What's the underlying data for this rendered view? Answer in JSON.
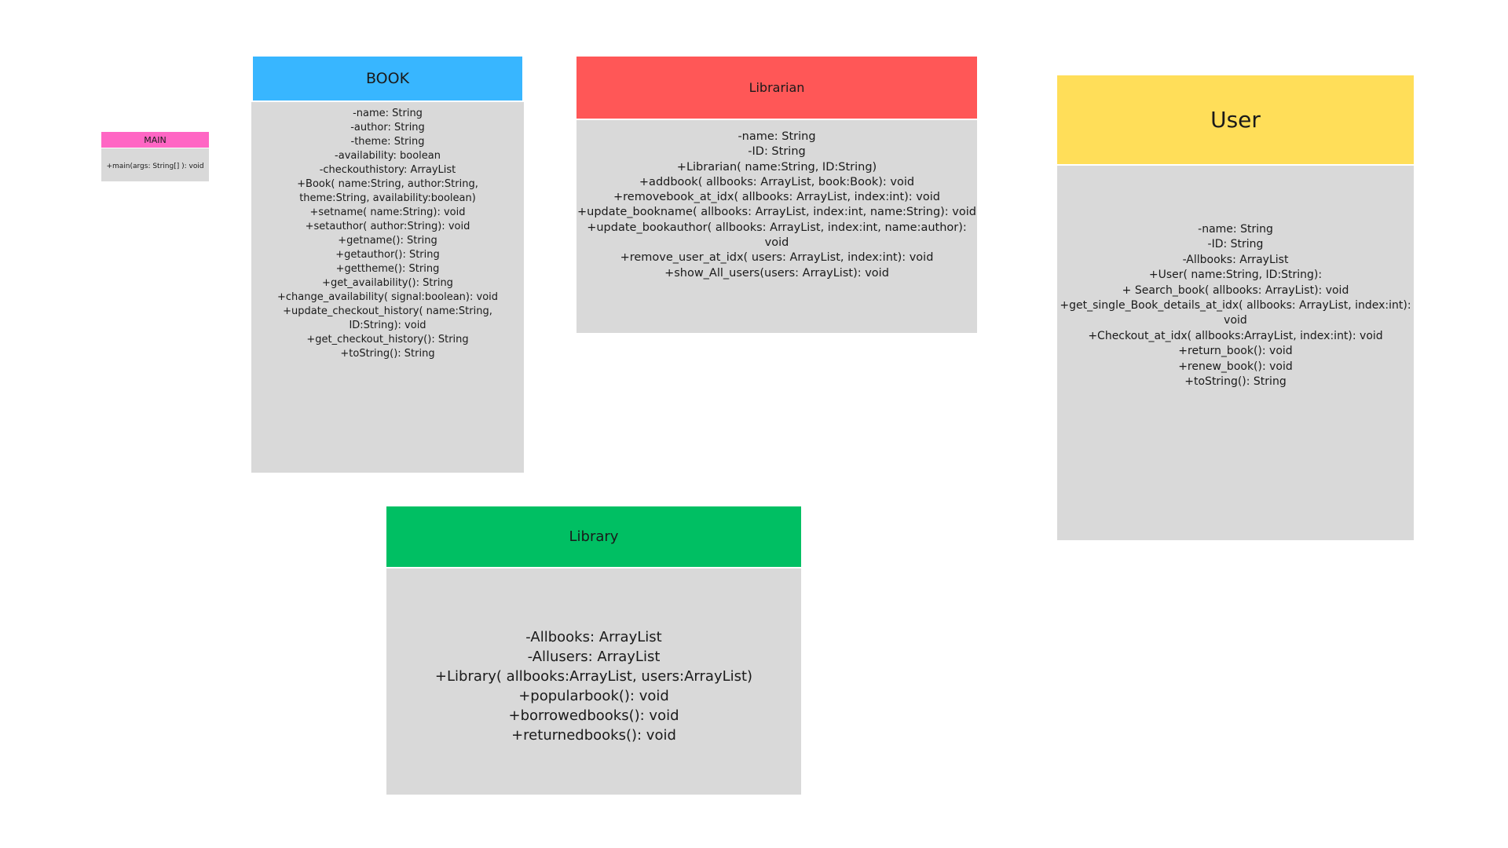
{
  "colors": {
    "main_header": "#ff66c4",
    "book_header": "#38b6ff",
    "librarian_header": "#ff5757",
    "user_header": "#ffde59",
    "library_header": "#00bf63",
    "class_body": "#d9d9d9",
    "background": "#ffffff"
  },
  "classes": {
    "main": {
      "name": "MAIN",
      "members": [
        "+main(args: String[] ): void"
      ]
    },
    "book": {
      "name": "BOOK",
      "members": [
        "-name: String",
        "-author: String",
        "-theme: String",
        "-availability: boolean",
        "-checkouthistory: ArrayList",
        "+Book( name:String, author:String, theme:String, availability:boolean)",
        "+setname( name:String): void",
        "+setauthor( author:String): void",
        "+getname(): String",
        "+getauthor(): String",
        "+gettheme(): String",
        "+get_availability(): String",
        "+change_availability( signal:boolean): void",
        "+update_checkout_history( name:String, ID:String): void",
        "+get_checkout_history(): String",
        "+toString(): String"
      ]
    },
    "librarian": {
      "name": "Librarian",
      "members": [
        "-name: String",
        "-ID: String",
        "+Librarian( name:String, ID:String)",
        "+addbook( allbooks: ArrayList, book:Book): void",
        "+removebook_at_idx( allbooks: ArrayList, index:int): void",
        "+update_bookname( allbooks: ArrayList, index:int, name:String): void",
        "+update_bookauthor( allbooks: ArrayList, index:int, name:author): void",
        "+remove_user_at_idx( users: ArrayList, index:int): void",
        "+show_All_users(users: ArrayList): void"
      ]
    },
    "user": {
      "name": "User",
      "members": [
        "-name: String",
        "-ID: String",
        "-Allbooks: ArrayList",
        "+User( name:String, ID:String):",
        "+ Search_book( allbooks: ArrayList): void",
        "+get_single_Book_details_at_idx( allbooks: ArrayList, index:int): void",
        "+Checkout_at_idx( allbooks:ArrayList, index:int): void",
        "+return_book(): void",
        "+renew_book(): void",
        "+toString(): String"
      ]
    },
    "library": {
      "name": "Library",
      "members": [
        "-Allbooks: ArrayList",
        "-Allusers: ArrayList",
        "+Library( allbooks:ArrayList, users:ArrayList)",
        "+popularbook(): void",
        "+borrowedbooks(): void",
        "+returnedbooks(): void"
      ]
    }
  }
}
